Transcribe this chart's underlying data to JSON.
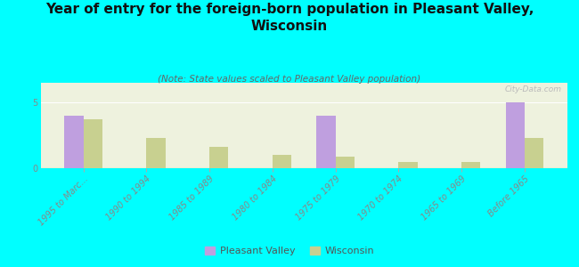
{
  "title": "Year of entry for the foreign-born population in Pleasant Valley,\nWisconsin",
  "subtitle": "(Note: State values scaled to Pleasant Valley population)",
  "categories": [
    "1995 to Marc...",
    "1990 to 1994",
    "1985 to 1989",
    "1980 to 1984",
    "1975 to 1979",
    "1970 to 1974",
    "1965 to 1969",
    "Before 1965"
  ],
  "pleasant_valley": [
    4.0,
    0.0,
    0.0,
    0.0,
    4.0,
    0.0,
    0.0,
    5.0
  ],
  "wisconsin": [
    3.7,
    2.3,
    1.6,
    1.0,
    0.9,
    0.5,
    0.5,
    2.3
  ],
  "pv_color": "#bf9fdf",
  "wi_color": "#c8d090",
  "background_color": "#00ffff",
  "plot_bg": "#eef2de",
  "ylim": [
    0,
    6.5
  ],
  "yticks": [
    0,
    5
  ],
  "bar_width": 0.3,
  "title_fontsize": 11,
  "subtitle_fontsize": 7.5,
  "tick_fontsize": 7,
  "legend_fontsize": 8,
  "watermark": "City-Data.com"
}
